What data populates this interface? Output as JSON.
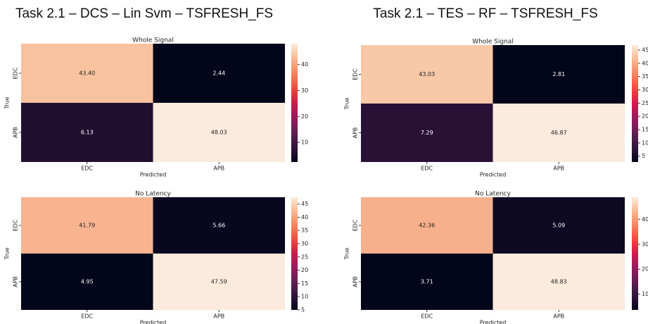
{
  "panel_titles": [
    "Task 2.1 – DCS – Lin Svm – TSFRESH_FS",
    "Task 2.1 – TES – RF – TSFRESH_FS"
  ],
  "chart_data": [
    {
      "type": "heatmap",
      "title": "Whole Signal",
      "xlabel": "Predicted",
      "ylabel": "True",
      "x": [
        "EDC",
        "APB"
      ],
      "y": [
        "EDC",
        "APB"
      ],
      "values": [
        [
          43.4,
          2.44
        ],
        [
          6.13,
          48.03
        ]
      ],
      "value_labels": [
        [
          "43.40",
          "2.44"
        ],
        [
          "6.13",
          "48.03"
        ]
      ],
      "colormap": "rocket",
      "zlim": [
        2.44,
        48.03
      ],
      "zticks": [
        10,
        20,
        30,
        40
      ]
    },
    {
      "type": "heatmap",
      "title": "Whole Signal",
      "xlabel": "Predicted",
      "ylabel": "True",
      "x": [
        "EDC",
        "APB"
      ],
      "y": [
        "EDC",
        "APB"
      ],
      "values": [
        [
          43.03,
          2.81
        ],
        [
          7.29,
          46.87
        ]
      ],
      "value_labels": [
        [
          "43.03",
          "2.81"
        ],
        [
          "7.29",
          "46.87"
        ]
      ],
      "colormap": "rocket",
      "zlim": [
        2.81,
        46.87
      ],
      "zticks": [
        5,
        10,
        15,
        20,
        25,
        30,
        35,
        40,
        45
      ]
    },
    {
      "type": "heatmap",
      "title": "No Latency",
      "xlabel": "Predicted",
      "ylabel": "True",
      "x": [
        "EDC",
        "APB"
      ],
      "y": [
        "EDC",
        "APB"
      ],
      "values": [
        [
          41.79,
          5.66
        ],
        [
          4.95,
          47.59
        ]
      ],
      "value_labels": [
        [
          "41.79",
          "5.66"
        ],
        [
          "4.95",
          "47.59"
        ]
      ],
      "colormap": "rocket",
      "zlim": [
        4.95,
        47.59
      ],
      "zticks": [
        5,
        10,
        15,
        20,
        25,
        30,
        35,
        40,
        45
      ]
    },
    {
      "type": "heatmap",
      "title": "No Latency",
      "xlabel": "Predicted",
      "ylabel": "True",
      "x": [
        "EDC",
        "APB"
      ],
      "y": [
        "EDC",
        "APB"
      ],
      "values": [
        [
          42.36,
          5.09
        ],
        [
          3.71,
          48.83
        ]
      ],
      "value_labels": [
        [
          "42.36",
          "5.09"
        ],
        [
          "3.71",
          "48.83"
        ]
      ],
      "colormap": "rocket",
      "zlim": [
        3.71,
        48.83
      ],
      "zticks": [
        10,
        20,
        30,
        40
      ]
    }
  ]
}
